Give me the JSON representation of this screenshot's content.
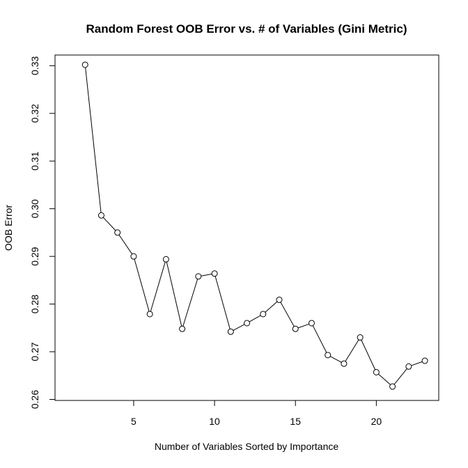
{
  "chart_data": {
    "type": "line",
    "title": "Random Forest OOB Error vs. # of Variables (Gini Metric)",
    "xlabel": "Number of Variables Sorted by Importance",
    "ylabel": "OOB Error",
    "xlim": [
      1,
      24
    ],
    "ylim": [
      0.26,
      0.333
    ],
    "x_ticks": [
      5,
      10,
      15,
      20
    ],
    "y_ticks": [
      0.26,
      0.27,
      0.28,
      0.29,
      0.3,
      0.31,
      0.32,
      0.33
    ],
    "y_tick_labels": [
      "0.26",
      "0.27",
      "0.28",
      "0.29",
      "0.30",
      "0.31",
      "0.32",
      "0.33"
    ],
    "grid": false,
    "legend": "none",
    "line_color": "#000000",
    "marker": "open-circle",
    "series": [
      {
        "x": [
          2,
          3,
          4,
          5,
          6,
          7,
          8,
          9,
          10,
          11,
          12,
          13,
          14,
          15,
          16,
          17,
          18,
          19,
          20,
          21,
          22,
          23
        ],
        "values": [
          0.3302,
          0.2986,
          0.295,
          0.29,
          0.2779,
          0.2894,
          0.2748,
          0.2858,
          0.2864,
          0.2742,
          0.276,
          0.2779,
          0.2809,
          0.2748,
          0.276,
          0.2693,
          0.2675,
          0.273,
          0.2657,
          0.2627,
          0.2669,
          0.2681
        ]
      }
    ]
  }
}
